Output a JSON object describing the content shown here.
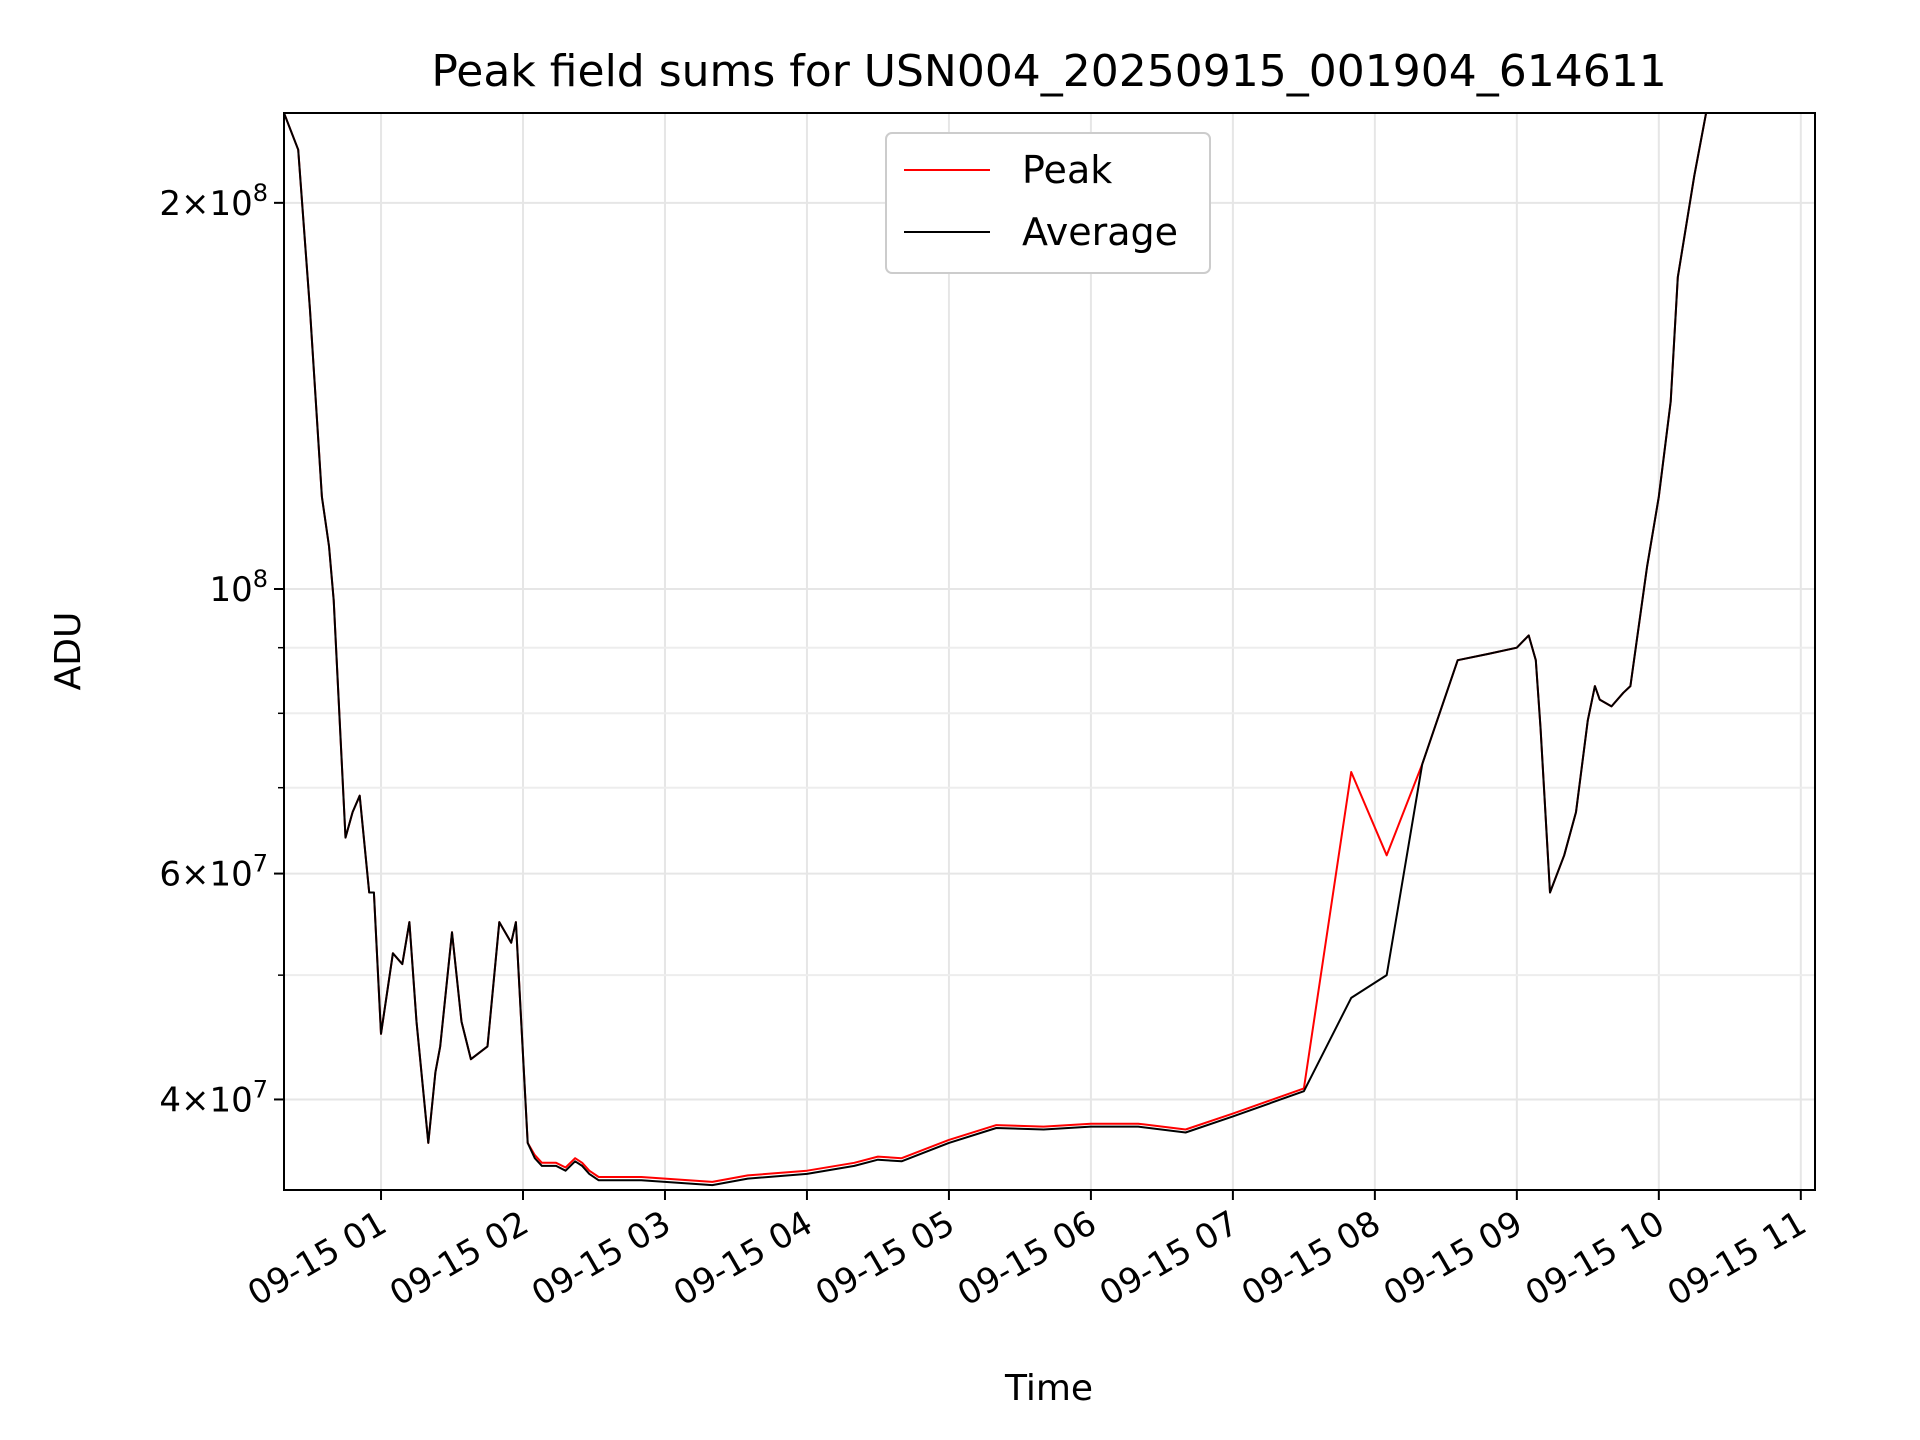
{
  "chart_data": {
    "type": "line",
    "title": "Peak field sums for USN004_20250915_001904_614611",
    "xlabel": "Time",
    "ylabel": "ADU",
    "yscale": "log",
    "xlim": [
      "2025-09-15 00:19",
      "2025-09-15 11:06"
    ],
    "ylim": [
      34000000,
      235000000
    ],
    "grid": true,
    "legend_position": "top-center",
    "x_tick_labels": [
      "09-15 01",
      "09-15 02",
      "09-15 03",
      "09-15 04",
      "09-15 05",
      "09-15 06",
      "09-15 07",
      "09-15 08",
      "09-15 09",
      "09-15 10",
      "09-15 11"
    ],
    "y_ticks": [
      {
        "value": 40000000,
        "base": "4",
        "exp": "7",
        "prefix": "4×10"
      },
      {
        "value": 60000000,
        "base": "6",
        "exp": "7",
        "prefix": "6×10"
      },
      {
        "value": 100000000,
        "base": "",
        "exp": "8",
        "prefix": "10"
      },
      {
        "value": 200000000,
        "base": "2",
        "exp": "8",
        "prefix": "2×10"
      }
    ],
    "x": [
      "2025-09-15 00:19",
      "2025-09-15 00:25",
      "2025-09-15 00:30",
      "2025-09-15 00:35",
      "2025-09-15 00:38",
      "2025-09-15 00:40",
      "2025-09-15 00:45",
      "2025-09-15 00:48",
      "2025-09-15 00:51",
      "2025-09-15 00:55",
      "2025-09-15 00:57",
      "2025-09-15 01:00",
      "2025-09-15 01:05",
      "2025-09-15 01:09",
      "2025-09-15 01:12",
      "2025-09-15 01:15",
      "2025-09-15 01:20",
      "2025-09-15 01:23",
      "2025-09-15 01:25",
      "2025-09-15 01:30",
      "2025-09-15 01:34",
      "2025-09-15 01:38",
      "2025-09-15 01:45",
      "2025-09-15 01:50",
      "2025-09-15 01:55",
      "2025-09-15 01:57",
      "2025-09-15 02:02",
      "2025-09-15 02:05",
      "2025-09-15 02:08",
      "2025-09-15 02:14",
      "2025-09-15 02:18",
      "2025-09-15 02:22",
      "2025-09-15 02:25",
      "2025-09-15 02:28",
      "2025-09-15 02:32",
      "2025-09-15 02:40",
      "2025-09-15 02:50",
      "2025-09-15 03:00",
      "2025-09-15 03:10",
      "2025-09-15 03:20",
      "2025-09-15 03:35",
      "2025-09-15 04:00",
      "2025-09-15 04:20",
      "2025-09-15 04:30",
      "2025-09-15 04:40",
      "2025-09-15 05:00",
      "2025-09-15 05:20",
      "2025-09-15 05:40",
      "2025-09-15 06:00",
      "2025-09-15 06:20",
      "2025-09-15 06:40",
      "2025-09-15 07:00",
      "2025-09-15 07:30",
      "2025-09-15 07:50",
      "2025-09-15 08:05",
      "2025-09-15 08:20",
      "2025-09-15 08:35",
      "2025-09-15 08:48",
      "2025-09-15 09:00",
      "2025-09-15 09:05",
      "2025-09-15 09:08",
      "2025-09-15 09:10",
      "2025-09-15 09:14",
      "2025-09-15 09:20",
      "2025-09-15 09:25",
      "2025-09-15 09:30",
      "2025-09-15 09:33",
      "2025-09-15 09:35",
      "2025-09-15 09:40",
      "2025-09-15 09:45",
      "2025-09-15 09:48",
      "2025-09-15 09:55",
      "2025-09-15 10:00",
      "2025-09-15 10:05",
      "2025-09-15 10:08",
      "2025-09-15 10:15",
      "2025-09-15 10:20",
      "2025-09-15 10:25",
      "2025-09-15 10:30",
      "2025-09-15 10:37",
      "2025-09-15 10:42",
      "2025-09-15 10:50",
      "2025-09-15 11:00",
      "2025-09-15 11:06"
    ],
    "series": [
      {
        "name": "Average",
        "color": "#000000",
        "values": [
          235000000,
          220000000,
          165000000,
          118000000,
          108000000,
          98000000,
          64000000,
          67000000,
          69000000,
          58000000,
          58000000,
          45000000,
          52000000,
          51000000,
          55000000,
          46000000,
          37000000,
          42000000,
          44000000,
          54000000,
          46000000,
          43000000,
          44000000,
          55000000,
          53000000,
          55000000,
          37000000,
          36000000,
          35500000,
          35500000,
          35200000,
          35800000,
          35500000,
          35000000,
          34600000,
          34600000,
          34600000,
          34500000,
          34400000,
          34300000,
          34700000,
          35000000,
          35500000,
          35900000,
          35800000,
          37000000,
          38000000,
          37900000,
          38100000,
          38100000,
          37700000,
          38800000,
          40600000,
          48000000,
          50000000,
          73000000,
          88000000,
          89000000,
          90000000,
          92000000,
          88000000,
          78000000,
          58000000,
          62000000,
          67000000,
          79000000,
          84000000,
          82000000,
          81000000,
          83000000,
          84000000,
          104000000,
          118000000,
          140000000,
          175000000,
          210000000,
          235000000,
          235000000,
          235000000,
          235000000,
          235000000,
          235000000,
          235000000,
          235000000
        ]
      },
      {
        "name": "Peak",
        "color": "#ff0000",
        "values": [
          235000000,
          220000000,
          165000000,
          118000000,
          108000000,
          98000000,
          64000000,
          67000000,
          69000000,
          58000000,
          58000000,
          45000000,
          52000000,
          51000000,
          55000000,
          46000000,
          37000000,
          42000000,
          44000000,
          54000000,
          46000000,
          43000000,
          44000000,
          55000000,
          53000000,
          55000000,
          37000000,
          36200000,
          35700000,
          35700000,
          35400000,
          36000000,
          35700000,
          35200000,
          34800000,
          34800000,
          34800000,
          34700000,
          34600000,
          34500000,
          34900000,
          35200000,
          35700000,
          36100000,
          36000000,
          37200000,
          38200000,
          38100000,
          38300000,
          38300000,
          37900000,
          39000000,
          40800000,
          72000000,
          62000000,
          73000000,
          88000000,
          89000000,
          90000000,
          92000000,
          88000000,
          78000000,
          58000000,
          62000000,
          67000000,
          79000000,
          84000000,
          82000000,
          81000000,
          83000000,
          84000000,
          104000000,
          118000000,
          140000000,
          175000000,
          210000000,
          235000000,
          235000000,
          235000000,
          235000000,
          235000000,
          235000000,
          235000000,
          235000000
        ]
      }
    ]
  },
  "legend": {
    "items": [
      {
        "label": "Peak",
        "color": "#ff0000"
      },
      {
        "label": "Average",
        "color": "#000000"
      }
    ]
  }
}
